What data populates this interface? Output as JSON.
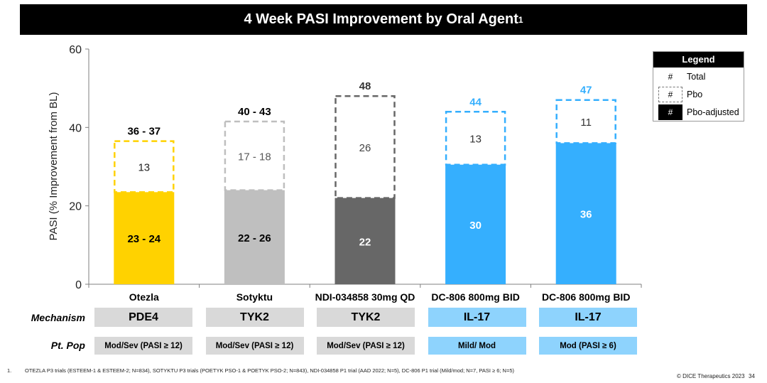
{
  "slide": {
    "title": "4 Week PASI Improvement  by Oral Agent",
    "title_superscript": "1",
    "legend": {
      "title": "Legend",
      "items": [
        {
          "symbol": "#",
          "style": "plain",
          "label": "Total"
        },
        {
          "symbol": "#",
          "style": "dashed",
          "label": "Pbo"
        },
        {
          "symbol": "#",
          "style": "solid",
          "label": "Pbo-adjusted"
        }
      ]
    },
    "rows": {
      "mechanism_label": "Mechanism",
      "population_label": "Pt. Pop"
    },
    "footnote": {
      "number": "1.",
      "text": "OTEZLA P3 trials (ESTEEM-1 & ESTEEM-2; N=834), SOTYKTU P3 trials (POETYK PSO-1 & POETYK PSO-2; N=843), NDI-034858 P1 trial (AAD 2022; N=5), DC-806 P1 trial (Mild/mod; N=7, PASI ≥ 6; N=5)"
    },
    "copyright": "© DICE Therapeutics 2023",
    "page_number": "34"
  },
  "chart_data": {
    "type": "bar",
    "stacked": true,
    "title": "4 Week PASI Improvement  by Oral Agent",
    "xlabel": "",
    "ylabel": "PASI (% Improvement from BL)",
    "ylim": [
      0,
      60
    ],
    "yticks": [
      0,
      20,
      40,
      60
    ],
    "grid": false,
    "legend_position": "top-right",
    "categories": [
      "Otezla",
      "Sotyktu",
      "NDI-034858 30mg QD",
      "DC-806 800mg BID",
      "DC-806 800mg BID"
    ],
    "series": [
      {
        "name": "Pbo-adjusted",
        "values": [
          23.5,
          24,
          22,
          30.5,
          36
        ],
        "labels": [
          "23 - 24",
          "22 - 26",
          "22",
          "30",
          "36"
        ]
      },
      {
        "name": "Pbo",
        "values": [
          13,
          17.5,
          26,
          13.5,
          11
        ],
        "labels": [
          "13",
          "17 - 18",
          "26",
          "13",
          "11"
        ]
      }
    ],
    "totals": {
      "values": [
        36.5,
        41.5,
        48,
        44,
        47
      ],
      "labels": [
        "36 - 37",
        "40 - 43",
        "48",
        "44",
        "47"
      ]
    },
    "bar_colors": [
      "#FFD200",
      "#BFBFBF",
      "#676767",
      "#35AFFE",
      "#35AFFE"
    ],
    "total_label_colors": [
      "#000000",
      "#000000",
      "#333333",
      "#35AFFE",
      "#35AFFE"
    ],
    "solid_label_colors": [
      "#000000",
      "#000000",
      "#ffffff",
      "#ffffff",
      "#ffffff"
    ],
    "pbo_label_colors": [
      "#222222",
      "#595959",
      "#444444",
      "#333333",
      "#333333"
    ],
    "mechanism": [
      "PDE4",
      "TYK2",
      "TYK2",
      "IL-17",
      "IL-17"
    ],
    "population": [
      "Mod/Sev (PASI ≥ 12)",
      "Mod/Sev (PASI ≥ 12)",
      "Mod/Sev (PASI ≥ 12)",
      "Mild/ Mod",
      "Mod (PASI ≥ 6)"
    ],
    "cell_colors": [
      "#D9D9D9",
      "#D9D9D9",
      "#D9D9D9",
      "#8ED3FD",
      "#8ED3FD"
    ]
  }
}
